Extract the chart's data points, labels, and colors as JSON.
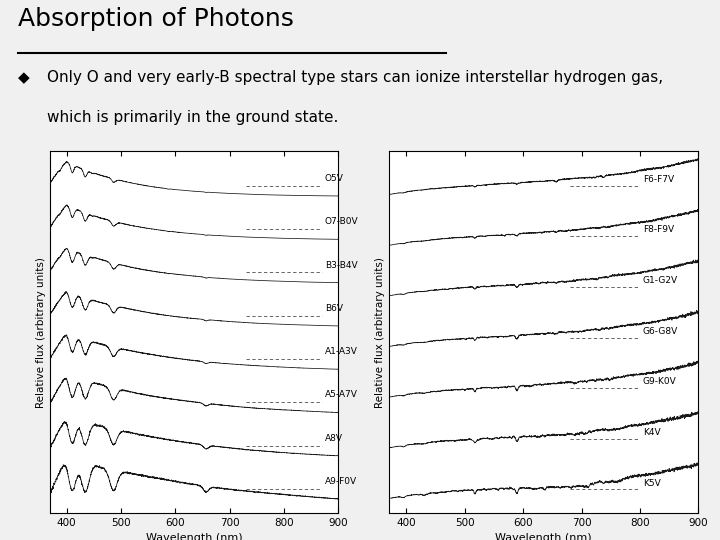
{
  "title": "Absorption of Photons",
  "bullet_char": "◆",
  "bullet_text_line1": "Only O and very early-B spectral type stars can ionize interstellar hydrogen gas,",
  "bullet_text_line2": "which is primarily in the ground state.",
  "bg_color": "#f0f0f0",
  "title_color": "#000000",
  "title_fontsize": 18,
  "bullet_fontsize": 11,
  "left_labels": [
    "O5V",
    "O7-B0V",
    "B3-B4V",
    "B6V",
    "A1-A3V",
    "A5-A7V",
    "A8V",
    "A9-F0V"
  ],
  "right_labels": [
    "F6-F7V",
    "F8-F9V",
    "G1-G2V",
    "G6-G8V",
    "G9-K0V",
    "K4V",
    "K5V"
  ],
  "xlabel": "Wavelength (nm)",
  "ylabel": "Relative flux (arbitrary units)",
  "xlim": [
    370,
    900
  ],
  "xticks": [
    400,
    500,
    600,
    700,
    800,
    900
  ]
}
